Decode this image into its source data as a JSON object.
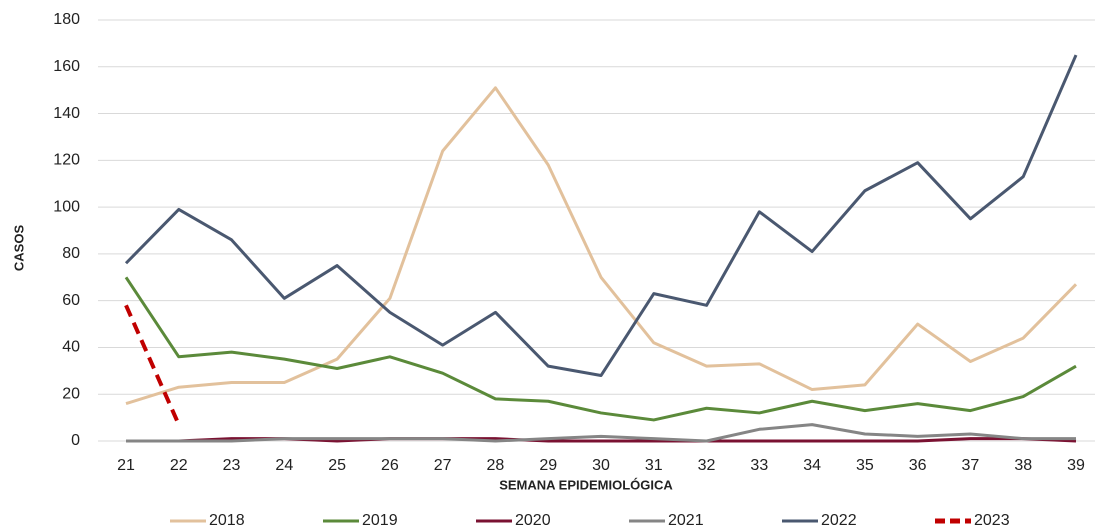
{
  "chart_data": {
    "type": "line",
    "y_label": "CASOS",
    "x_label": "SEMANA EPIDEMIOLÓGICA",
    "x": [
      21,
      22,
      23,
      24,
      25,
      26,
      27,
      28,
      29,
      30,
      31,
      32,
      33,
      34,
      35,
      36,
      37,
      38,
      39
    ],
    "xlim": [
      21,
      39
    ],
    "xticks": [
      21,
      22,
      23,
      24,
      25,
      26,
      27,
      28,
      29,
      30,
      31,
      32,
      33,
      34,
      35,
      36,
      37,
      38,
      39
    ],
    "ylim": [
      0,
      180
    ],
    "yticks": [
      0,
      20,
      40,
      60,
      80,
      100,
      120,
      140,
      160,
      180
    ],
    "grid": true,
    "legend": "bottom",
    "series": [
      {
        "name": "2018",
        "color": "#e2c19c",
        "values": [
          16,
          23,
          25,
          25,
          35,
          61,
          124,
          151,
          118,
          70,
          42,
          32,
          33,
          22,
          24,
          50,
          34,
          44,
          67
        ]
      },
      {
        "name": "2019",
        "color": "#5b8a3a",
        "values": [
          70,
          36,
          38,
          35,
          31,
          36,
          29,
          18,
          17,
          12,
          9,
          14,
          12,
          17,
          13,
          16,
          13,
          19,
          32
        ]
      },
      {
        "name": "2020",
        "color": "#7a1232",
        "values": [
          0,
          0,
          1,
          1,
          0,
          1,
          1,
          1,
          0,
          0,
          0,
          0,
          0,
          0,
          0,
          0,
          1,
          1,
          0
        ]
      },
      {
        "name": "2021",
        "color": "#858585",
        "values": [
          0,
          0,
          0,
          1,
          1,
          1,
          1,
          0,
          1,
          2,
          1,
          0,
          5,
          7,
          3,
          2,
          3,
          1,
          1
        ]
      },
      {
        "name": "2022",
        "color": "#4a5870",
        "values": [
          76,
          99,
          86,
          61,
          75,
          55,
          41,
          55,
          32,
          28,
          63,
          58,
          98,
          81,
          107,
          119,
          95,
          113,
          165
        ]
      },
      {
        "name": "2023",
        "color": "#c00000",
        "line_style": "dashed",
        "values": [
          58,
          7,
          null,
          null,
          null,
          null,
          null,
          null,
          null,
          null,
          null,
          null,
          null,
          null,
          null,
          null,
          null,
          null,
          null
        ]
      }
    ]
  }
}
